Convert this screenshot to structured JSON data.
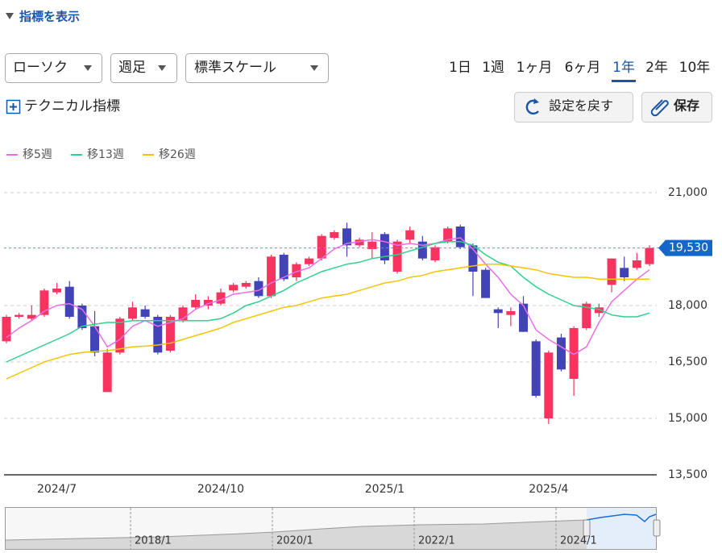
{
  "ui": {
    "indicator_toggle": "指標を表示",
    "dropdowns": [
      "ローソク",
      "週足",
      "標準スケール"
    ],
    "periods": [
      "1日",
      "1週",
      "1ヶ月",
      "6ヶ月",
      "1年",
      "2年",
      "10年"
    ],
    "selected_period_index": 4,
    "technical": "テクニカル指標",
    "buttons": [
      "設定を戻す",
      "保存"
    ],
    "navigator_labels": [
      "2018/1",
      "2020/1",
      "2022/1",
      "2024/1"
    ]
  },
  "chart_data": {
    "type": "candlestick",
    "categories": [
      null,
      null,
      null,
      null,
      "2024/7",
      null,
      null,
      null,
      null,
      null,
      null,
      null,
      null,
      null,
      null,
      null,
      null,
      "2024/10",
      null,
      null,
      null,
      null,
      null,
      null,
      null,
      null,
      null,
      null,
      null,
      null,
      "2025/1",
      null,
      null,
      null,
      null,
      null,
      null,
      null,
      null,
      null,
      null,
      null,
      null,
      "2025/4",
      null,
      null,
      null,
      null,
      null,
      null,
      null,
      null
    ],
    "open": [
      17050,
      17700,
      17650,
      17750,
      18350,
      18500,
      18000,
      17450,
      15700,
      16750,
      17650,
      17900,
      17700,
      16800,
      17600,
      17950,
      18000,
      18050,
      18400,
      18500,
      18650,
      18250,
      19350,
      18750,
      19100,
      19250,
      19800,
      20050,
      19600,
      19500,
      19900,
      18900,
      19750,
      19700,
      19200,
      19700,
      20100,
      19600,
      18950,
      17900,
      17750,
      18050,
      17050,
      15000,
      17150,
      16050,
      17400,
      17800,
      18550,
      19000,
      19000,
      19100
    ],
    "high": [
      17750,
      17800,
      18000,
      18450,
      18600,
      18650,
      18050,
      17850,
      16850,
      17700,
      18100,
      18000,
      17750,
      17750,
      18000,
      18300,
      18250,
      18450,
      18600,
      18650,
      18750,
      19350,
      19400,
      19150,
      19300,
      19900,
      20000,
      20200,
      19800,
      19950,
      19950,
      19750,
      20100,
      19850,
      19600,
      20100,
      20150,
      19650,
      19000,
      17950,
      17950,
      18250,
      17100,
      16800,
      17250,
      17450,
      18100,
      18050,
      19250,
      19300,
      19400,
      19600
    ],
    "low": [
      17000,
      17650,
      17600,
      17700,
      18300,
      17650,
      17350,
      16650,
      15700,
      16700,
      17600,
      17650,
      16700,
      16750,
      17550,
      17900,
      17900,
      18000,
      18350,
      18450,
      18200,
      18200,
      18650,
      18650,
      19050,
      19200,
      19750,
      19300,
      19550,
      19250,
      19100,
      18850,
      19650,
      19200,
      19150,
      19650,
      19500,
      18250,
      18200,
      17400,
      17450,
      17300,
      15550,
      14850,
      16250,
      15600,
      17350,
      17700,
      18350,
      18650,
      18950,
      19050
    ],
    "close": [
      17700,
      17750,
      17750,
      18400,
      18450,
      17700,
      17400,
      16750,
      16750,
      17650,
      17950,
      17700,
      16750,
      17700,
      17950,
      18150,
      18150,
      18350,
      18550,
      18600,
      18250,
      19300,
      18700,
      19100,
      19250,
      19850,
      19950,
      19600,
      19750,
      19700,
      19200,
      19700,
      20000,
      19250,
      19550,
      20050,
      19550,
      18900,
      18200,
      17800,
      17850,
      17300,
      15600,
      16750,
      16300,
      17400,
      18050,
      17950,
      19250,
      18750,
      19200,
      19530
    ],
    "up_color": "#f7335f",
    "down_color": "#4343b8",
    "series": [
      {
        "name": "移5週",
        "color": "#e96ee8",
        "values": [
          17150,
          17400,
          17600,
          17850,
          18000,
          18050,
          17900,
          17450,
          16900,
          17100,
          17450,
          17600,
          17450,
          17550,
          17650,
          17900,
          18050,
          18150,
          18300,
          18350,
          18400,
          18600,
          18750,
          18900,
          19000,
          19250,
          19500,
          19650,
          19700,
          19750,
          19700,
          19600,
          19650,
          19600,
          19650,
          19750,
          19800,
          19500,
          19100,
          18750,
          18300,
          18000,
          17350,
          17100,
          16900,
          16700,
          16900,
          17550,
          18100,
          18400,
          18700,
          18950
        ]
      },
      {
        "name": "移13週",
        "color": "#2fd08a",
        "values": [
          16500,
          16650,
          16800,
          16950,
          17100,
          17250,
          17450,
          17500,
          17550,
          17550,
          17600,
          17600,
          17600,
          17600,
          17600,
          17600,
          17600,
          17650,
          17800,
          18000,
          18100,
          18250,
          18400,
          18600,
          18750,
          18900,
          19000,
          19100,
          19150,
          19250,
          19300,
          19350,
          19450,
          19550,
          19650,
          19700,
          19700,
          19600,
          19350,
          19150,
          19050,
          18750,
          18500,
          18300,
          18150,
          18000,
          17950,
          17900,
          17750,
          17700,
          17700,
          17800
        ]
      },
      {
        "name": "移26週",
        "color": "#f5c400",
        "values": [
          16050,
          16200,
          16350,
          16500,
          16600,
          16700,
          16750,
          16780,
          16800,
          16850,
          16900,
          16920,
          16950,
          17000,
          17100,
          17200,
          17300,
          17400,
          17550,
          17650,
          17750,
          17850,
          17950,
          18000,
          18100,
          18200,
          18250,
          18300,
          18400,
          18500,
          18600,
          18650,
          18750,
          18800,
          18900,
          18950,
          19000,
          19050,
          19100,
          19100,
          19050,
          19000,
          18950,
          18850,
          18800,
          18750,
          18750,
          18700,
          18700,
          18700,
          18700,
          18700
        ]
      }
    ],
    "ylim": [
      13500,
      21000
    ],
    "yticks": [
      {
        "value": 13500,
        "label": "13,500"
      },
      {
        "value": 15000,
        "label": "15,000"
      },
      {
        "value": 16500,
        "label": "16,500"
      },
      {
        "value": 18000,
        "label": "18,000"
      },
      {
        "value": 21000,
        "label": "21,000"
      }
    ],
    "grid": true,
    "current_price": {
      "value": 19530,
      "label": "19,530"
    }
  }
}
